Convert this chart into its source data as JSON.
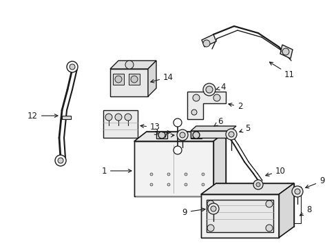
{
  "bg_color": "#ffffff",
  "lc": "#1a1a1a",
  "lw": 1.0,
  "figsize": [
    4.89,
    3.6
  ],
  "dpi": 100
}
